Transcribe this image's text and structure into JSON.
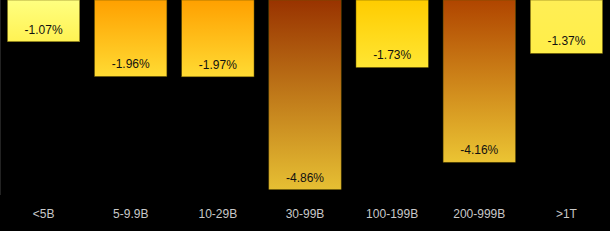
{
  "chart_data": {
    "type": "bar",
    "categories": [
      "<5B",
      "5-9.9B",
      "10-29B",
      "30-99B",
      "100-199B",
      "200-999B",
      ">1T"
    ],
    "values": [
      -1.07,
      -1.96,
      -1.97,
      -4.86,
      -1.73,
      -4.16,
      -1.37
    ],
    "value_labels": [
      "-1.07%",
      "-1.96%",
      "-1.97%",
      "-4.86%",
      "-1.73%",
      "-4.16%",
      "-1.37%"
    ],
    "colors": [
      "#ffff80",
      "#ffa000",
      "#ffa000",
      "#993300",
      "#ffcc00",
      "#b04500",
      "#ffee55"
    ],
    "ylim": [
      -5,
      0
    ],
    "yticks": [],
    "grid": false,
    "data_labels": true,
    "tick_labels": "x"
  }
}
